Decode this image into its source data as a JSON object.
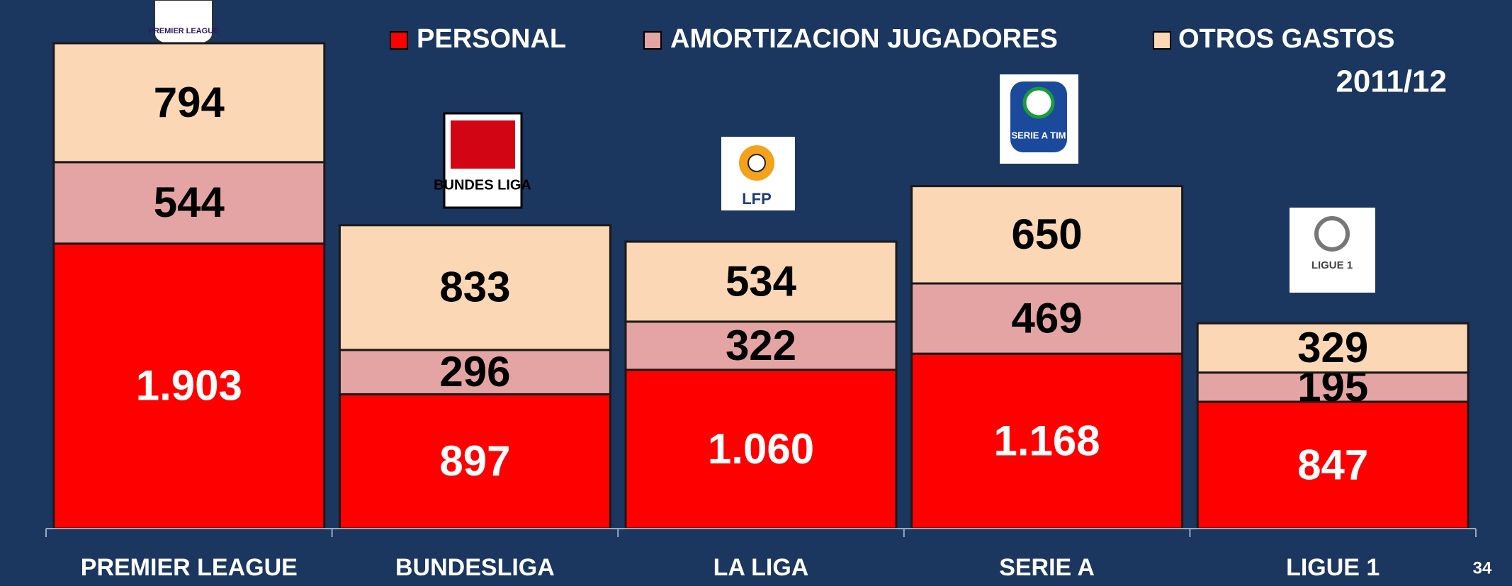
{
  "chart_data": {
    "type": "stacked_bar",
    "subtitle": "2011/12",
    "page_number": "34",
    "categories": [
      "PREMIER LEAGUE",
      "BUNDESLIGA",
      "LA LIGA",
      "SERIE A",
      "LIGUE 1"
    ],
    "logos": [
      "PREMIER LEAGUE",
      "BUNDES LIGA",
      "LFP",
      "SERIE A TIM",
      "LIGUE 1"
    ],
    "series": [
      {
        "name": "PERSONAL",
        "color": "#ff0000",
        "label_color": "#ffffff",
        "values": [
          1903,
          897,
          1060,
          1168,
          847
        ],
        "value_labels": [
          "1.903",
          "897",
          "1.060",
          "1.168",
          "847"
        ]
      },
      {
        "name": "AMORTIZACION JUGADORES",
        "color": "#e4a4a4",
        "label_color": "#000000",
        "values": [
          544,
          296,
          322,
          469,
          195
        ]
      },
      {
        "name": "OTROS GASTOS",
        "color": "#fcd7b6",
        "label_color": "#000000",
        "values": [
          794,
          833,
          534,
          650,
          329
        ]
      }
    ]
  }
}
